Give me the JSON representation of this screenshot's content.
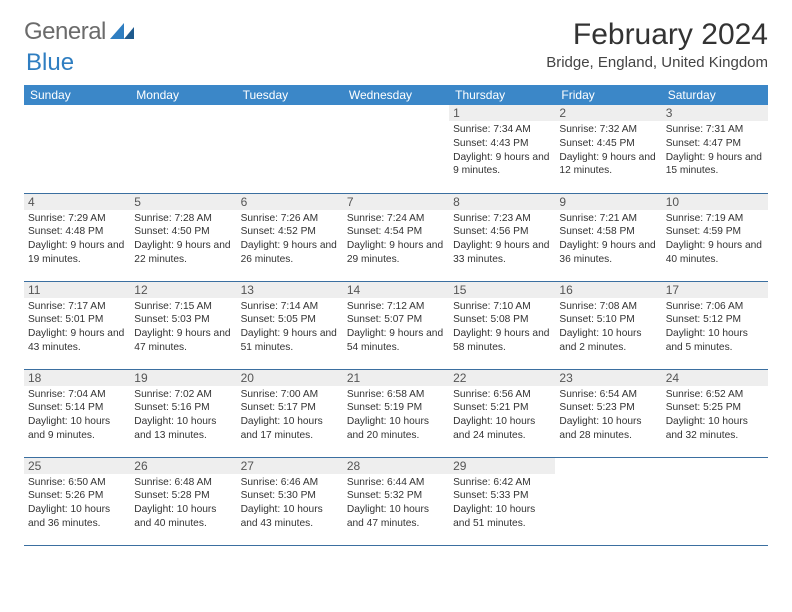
{
  "brand": {
    "part1": "General",
    "part2": "Blue"
  },
  "title": "February 2024",
  "location": "Bridge, England, United Kingdom",
  "colors": {
    "header_bg": "#3b87c8",
    "row_border": "#3b6fa0",
    "daynum_bg": "#eeeeee",
    "logo_blue": "#2f7ec1"
  },
  "weekdays": [
    "Sunday",
    "Monday",
    "Tuesday",
    "Wednesday",
    "Thursday",
    "Friday",
    "Saturday"
  ],
  "weeks": [
    [
      null,
      null,
      null,
      null,
      {
        "n": "1",
        "sunrise": "7:34 AM",
        "sunset": "4:43 PM",
        "daylight": "9 hours and 9 minutes."
      },
      {
        "n": "2",
        "sunrise": "7:32 AM",
        "sunset": "4:45 PM",
        "daylight": "9 hours and 12 minutes."
      },
      {
        "n": "3",
        "sunrise": "7:31 AM",
        "sunset": "4:47 PM",
        "daylight": "9 hours and 15 minutes."
      }
    ],
    [
      {
        "n": "4",
        "sunrise": "7:29 AM",
        "sunset": "4:48 PM",
        "daylight": "9 hours and 19 minutes."
      },
      {
        "n": "5",
        "sunrise": "7:28 AM",
        "sunset": "4:50 PM",
        "daylight": "9 hours and 22 minutes."
      },
      {
        "n": "6",
        "sunrise": "7:26 AM",
        "sunset": "4:52 PM",
        "daylight": "9 hours and 26 minutes."
      },
      {
        "n": "7",
        "sunrise": "7:24 AM",
        "sunset": "4:54 PM",
        "daylight": "9 hours and 29 minutes."
      },
      {
        "n": "8",
        "sunrise": "7:23 AM",
        "sunset": "4:56 PM",
        "daylight": "9 hours and 33 minutes."
      },
      {
        "n": "9",
        "sunrise": "7:21 AM",
        "sunset": "4:58 PM",
        "daylight": "9 hours and 36 minutes."
      },
      {
        "n": "10",
        "sunrise": "7:19 AM",
        "sunset": "4:59 PM",
        "daylight": "9 hours and 40 minutes."
      }
    ],
    [
      {
        "n": "11",
        "sunrise": "7:17 AM",
        "sunset": "5:01 PM",
        "daylight": "9 hours and 43 minutes."
      },
      {
        "n": "12",
        "sunrise": "7:15 AM",
        "sunset": "5:03 PM",
        "daylight": "9 hours and 47 minutes."
      },
      {
        "n": "13",
        "sunrise": "7:14 AM",
        "sunset": "5:05 PM",
        "daylight": "9 hours and 51 minutes."
      },
      {
        "n": "14",
        "sunrise": "7:12 AM",
        "sunset": "5:07 PM",
        "daylight": "9 hours and 54 minutes."
      },
      {
        "n": "15",
        "sunrise": "7:10 AM",
        "sunset": "5:08 PM",
        "daylight": "9 hours and 58 minutes."
      },
      {
        "n": "16",
        "sunrise": "7:08 AM",
        "sunset": "5:10 PM",
        "daylight": "10 hours and 2 minutes."
      },
      {
        "n": "17",
        "sunrise": "7:06 AM",
        "sunset": "5:12 PM",
        "daylight": "10 hours and 5 minutes."
      }
    ],
    [
      {
        "n": "18",
        "sunrise": "7:04 AM",
        "sunset": "5:14 PM",
        "daylight": "10 hours and 9 minutes."
      },
      {
        "n": "19",
        "sunrise": "7:02 AM",
        "sunset": "5:16 PM",
        "daylight": "10 hours and 13 minutes."
      },
      {
        "n": "20",
        "sunrise": "7:00 AM",
        "sunset": "5:17 PM",
        "daylight": "10 hours and 17 minutes."
      },
      {
        "n": "21",
        "sunrise": "6:58 AM",
        "sunset": "5:19 PM",
        "daylight": "10 hours and 20 minutes."
      },
      {
        "n": "22",
        "sunrise": "6:56 AM",
        "sunset": "5:21 PM",
        "daylight": "10 hours and 24 minutes."
      },
      {
        "n": "23",
        "sunrise": "6:54 AM",
        "sunset": "5:23 PM",
        "daylight": "10 hours and 28 minutes."
      },
      {
        "n": "24",
        "sunrise": "6:52 AM",
        "sunset": "5:25 PM",
        "daylight": "10 hours and 32 minutes."
      }
    ],
    [
      {
        "n": "25",
        "sunrise": "6:50 AM",
        "sunset": "5:26 PM",
        "daylight": "10 hours and 36 minutes."
      },
      {
        "n": "26",
        "sunrise": "6:48 AM",
        "sunset": "5:28 PM",
        "daylight": "10 hours and 40 minutes."
      },
      {
        "n": "27",
        "sunrise": "6:46 AM",
        "sunset": "5:30 PM",
        "daylight": "10 hours and 43 minutes."
      },
      {
        "n": "28",
        "sunrise": "6:44 AM",
        "sunset": "5:32 PM",
        "daylight": "10 hours and 47 minutes."
      },
      {
        "n": "29",
        "sunrise": "6:42 AM",
        "sunset": "5:33 PM",
        "daylight": "10 hours and 51 minutes."
      },
      null,
      null
    ]
  ]
}
